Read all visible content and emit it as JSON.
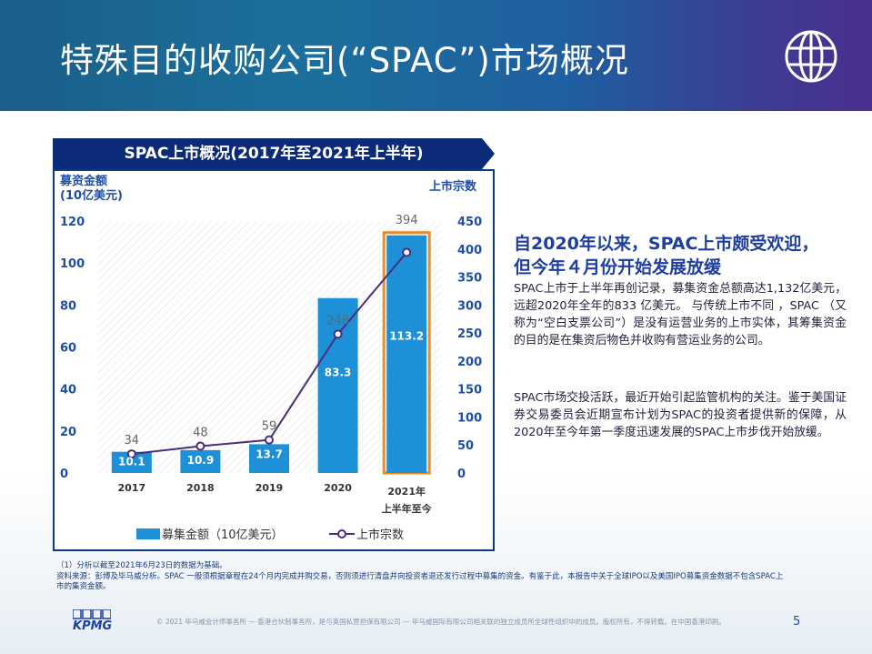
{
  "page": {
    "title": "特殊目的收购公司(“SPAC”)市场概况",
    "page_number": "5"
  },
  "chart_banner": "SPAC上市概况(2017年至2021年上半年)",
  "chart_data": {
    "type": "bar",
    "categories": [
      "2017",
      "2018",
      "2019",
      "2020",
      "2021年\n上半年至今"
    ],
    "category_lines": [
      [
        "2017"
      ],
      [
        "2018"
      ],
      [
        "2019"
      ],
      [
        "2020"
      ],
      [
        "2021年",
        "上半年至今"
      ]
    ],
    "series": [
      {
        "name": "募集金额（10亿美元）",
        "kind": "bar",
        "axis": "left",
        "values": [
          10.1,
          10.9,
          13.7,
          83.3,
          113.2
        ]
      },
      {
        "name": "上市宗数",
        "kind": "line",
        "axis": "right",
        "values": [
          34,
          48,
          59,
          248,
          394
        ]
      }
    ],
    "left_axis": {
      "label_line1": "募资金额",
      "label_line2": "(10亿美元)",
      "ylim": [
        0,
        120
      ],
      "ticks": [
        "0",
        "20",
        "40",
        "60",
        "80",
        "100",
        "120"
      ]
    },
    "right_axis": {
      "label": "上市宗数",
      "ylim": [
        0,
        450
      ],
      "ticks": [
        "0",
        "50",
        "100",
        "150",
        "200",
        "250",
        "300",
        "350",
        "400",
        "450"
      ]
    },
    "bar_labels": [
      "10.1",
      "10.9",
      "13.7",
      "83.3",
      "113.2"
    ],
    "line_labels": [
      "34",
      "48",
      "59",
      "248",
      "394"
    ],
    "highlighted_category": "2021年\n上半年至今",
    "legend": {
      "bar_label": "募集金额（10亿美元）",
      "line_label": "上市宗数",
      "placement": "bottom"
    },
    "colors": {
      "bar": "#1e90d8",
      "line": "#4b2c7d",
      "highlight": "#f08a24",
      "axis_text": "#1e4fa8"
    }
  },
  "commentary": {
    "headline_line1": "自2020年以来，SPAC上市颇受欢迎，",
    "headline_line2": "但今年４月份开始发展放缓",
    "para1": "SPAC上市于上半年再创记录，募集资金总额高达1,132亿美元，远超2020年全年的833 亿美元。 与传统上市不同 ，SPAC （又称为“空白支票公司”）是没有运营业务的上市实体，其筹集资金的目的是在集资后物色并收购有营运业务的公司。",
    "para2": "SPAC市场交投活跃，最近开始引起监管机构的关注。鉴于美国证券交易委员会近期宣布计划为SPAC的投资者提供新的保障，从2020年至今年第一季度迅速发展的SPAC上市步伐开始放缓。"
  },
  "footnotes": {
    "note1": "（1）分析以截至2021年6月23日的数据为基础。",
    "source": "资料来源：彭博及毕马威分析。SPAC 一般须根据章程在24个月内完成并购交易，否则须进行清盘并向投资者退还发行过程中募集的资金。有鉴于此，本报告中关于全球IPO以及美国IPO募集资金数据不包含SPAC上市的集资金额。"
  },
  "legal": "© 2021 毕马威会计师事务所 — 香港合伙制事务所，是与英国私营担保有限公司 — 毕马威国际有限公司相关联的独立成员所全球性组织中的成员。版权所有，不得转载。在中国香港印刷。",
  "brand": {
    "logo_text": "KPMG",
    "header_colors": [
      "#1a5f8a",
      "#4b2f8e"
    ]
  },
  "icons": {
    "header_icon": "globe-icon"
  }
}
